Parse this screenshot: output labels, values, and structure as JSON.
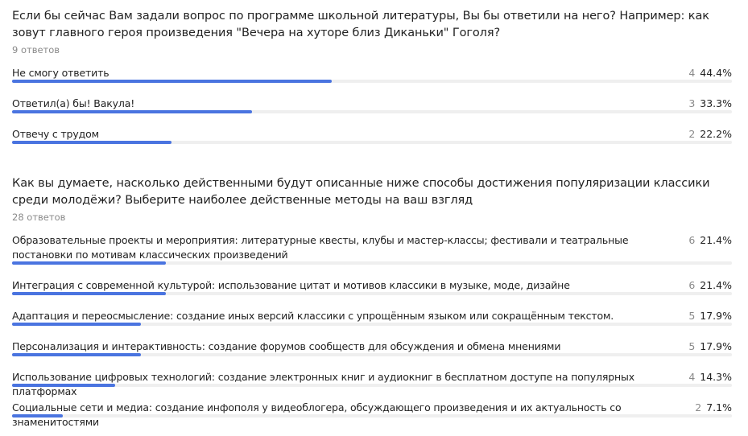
{
  "colors": {
    "accent": "#4a74e0",
    "track": "#efefef"
  },
  "chart_data": [
    {
      "type": "bar",
      "title": "Если бы сейчас Вам задали вопрос по программе школьной литературы, Вы бы ответили на него? Например: как зовут главного героя произведения \"Вечера на хуторе близ Диканьки\" Гоголя?",
      "subtitle": "9 ответов",
      "categories": [
        "Не смогу ответить",
        "Ответил(а) бы! Вакула!",
        "Отвечу с трудом"
      ],
      "values": [
        4,
        3,
        2
      ],
      "percent_labels": [
        "44.4%",
        "33.3%",
        "22.2%"
      ],
      "percent_values": [
        44.4,
        33.3,
        22.2
      ]
    },
    {
      "type": "bar",
      "title": "Как вы думаете, насколько действенными будут описанные ниже способы достижения популяризации классики среди молодёжи? Выберите наиболее действенные методы на ваш взгляд",
      "subtitle": "28 ответов",
      "categories": [
        "Образовательные проекты и мероприятия: литературные квесты, клубы и мастер-классы; фестивали и театральные постановки по мотивам классических произведений",
        "Интеграция с современной культурой: использование цитат и мотивов классики в музыке, моде, дизайне",
        "Адаптация и переосмысление: создание иных версий классики с упрощённым языком или сокращённым текстом.",
        "Персонализация и интерактивность: создание форумов сообществ для обсуждения и обмена мнениями",
        "Использование цифровых технологий: создание электронных книг и аудиокниг в бесплатном доступе на популярных платформах",
        "Социальные сети и медиа: создание инфополя у видеоблогера, обсуждающего произведения и их актуальность со знаменитостями"
      ],
      "values": [
        6,
        6,
        5,
        5,
        4,
        2
      ],
      "percent_labels": [
        "21.4%",
        "21.4%",
        "17.9%",
        "17.9%",
        "14.3%",
        "7.1%"
      ],
      "percent_values": [
        21.4,
        21.4,
        17.9,
        17.9,
        14.3,
        7.1
      ]
    }
  ]
}
